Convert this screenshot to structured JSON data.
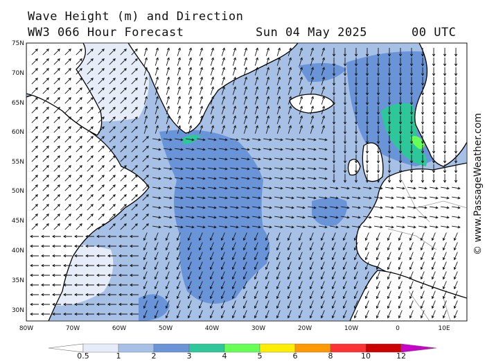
{
  "header": {
    "title_line1": "Wave Height (m) and Direction",
    "title_line2": "WW3 066 Hour Forecast",
    "date": "Sun 04 May 2025",
    "time": "00 UTC"
  },
  "watermark": "© www.PassageWeather.com",
  "axes": {
    "lat_labels": [
      "75N",
      "70N",
      "65N",
      "60N",
      "55N",
      "50N",
      "45N",
      "40N",
      "35N",
      "30N"
    ],
    "lon_labels": [
      "80W",
      "70W",
      "60W",
      "50W",
      "40W",
      "30W",
      "20W",
      "10W",
      "0",
      "10E"
    ]
  },
  "legend": {
    "labels": [
      "0.5",
      "1",
      "2",
      "3",
      "4",
      "5",
      "6",
      "8",
      "10",
      "12"
    ],
    "colors": [
      "#e6ecf8",
      "#a6c0e6",
      "#6a94d8",
      "#2ec79a",
      "#66ff55",
      "#ffee00",
      "#ff9900",
      "#ff3333",
      "#cc0000",
      "#cc00cc"
    ]
  },
  "colors": {
    "land": "#ffffff",
    "sea_low": "#a6c0e6",
    "sea_calm": "#e6ecf8",
    "sea_mid": "#6a94d8",
    "sea_high": "#2ec79a",
    "sea_peak": "#66ff55",
    "coast": "#000000",
    "border": "#9a9a9a",
    "arrow": "#111111"
  }
}
